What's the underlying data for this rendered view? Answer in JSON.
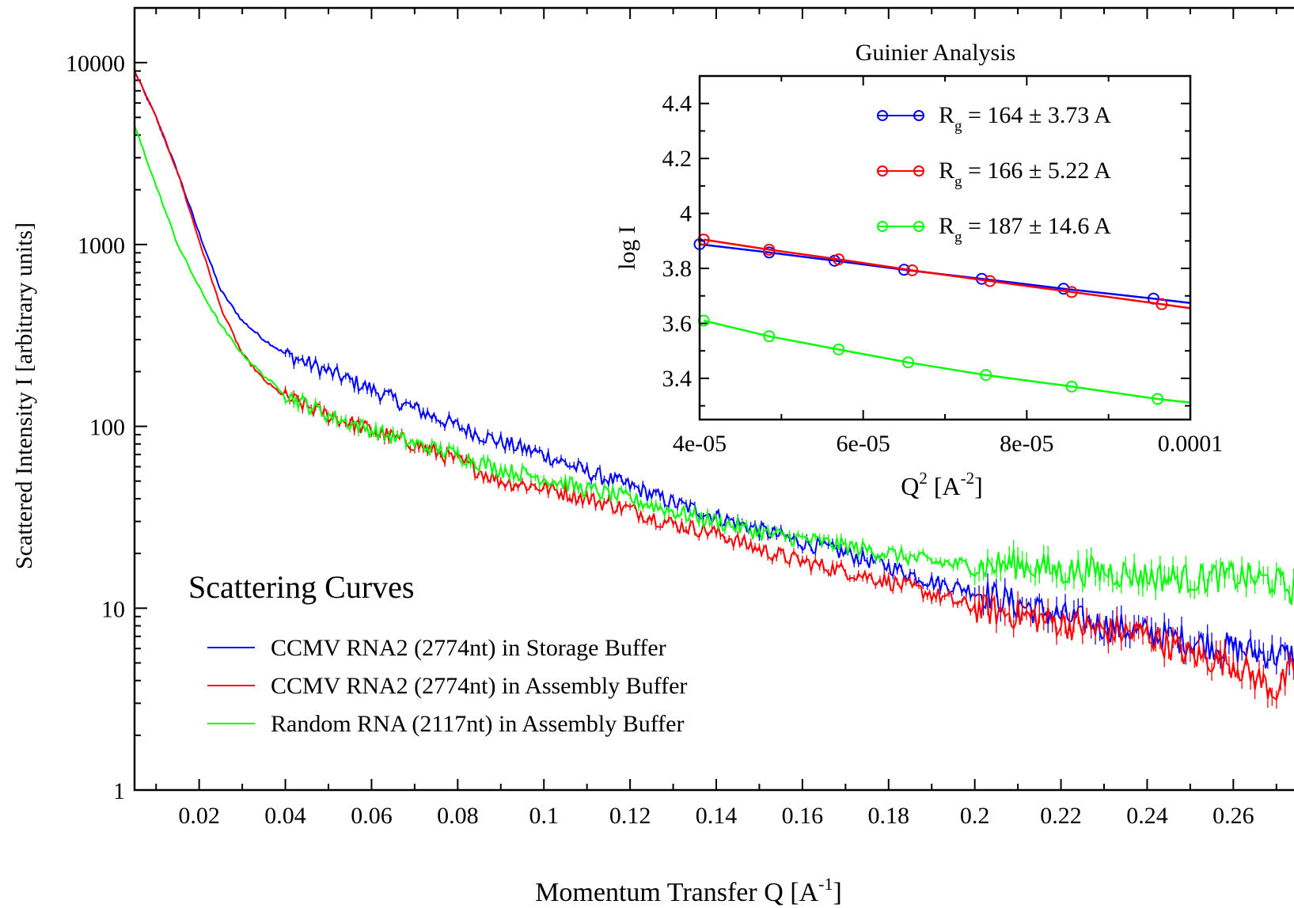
{
  "chart_data": [
    {
      "type": "line",
      "title": "Scattering Curves",
      "xlabel": "Momentum Transfer Q [A",
      "xlabel_sup": "-1",
      "xlabel_end": "]",
      "ylabel": "Scattered Intensity I [arbitrary units]",
      "xlim": [
        0.005,
        0.275
      ],
      "ylim": [
        1,
        20000
      ],
      "yscale": "log",
      "x_ticks": [
        "0.02",
        "0.04",
        "0.06",
        "0.08",
        "0.1",
        "0.12",
        "0.14",
        "0.16",
        "0.18",
        "0.2",
        "0.22",
        "0.24",
        "0.26"
      ],
      "y_ticks": [
        "1",
        "10",
        "100",
        "1000",
        "10000"
      ],
      "legend_position": "bottom-left",
      "series": [
        {
          "name": "CCMV RNA2 (2774nt) in Storage Buffer",
          "color": "#0000ff",
          "x": [
            0.005,
            0.01,
            0.015,
            0.02,
            0.025,
            0.03,
            0.035,
            0.04,
            0.05,
            0.06,
            0.07,
            0.08,
            0.09,
            0.1,
            0.11,
            0.12,
            0.13,
            0.14,
            0.15,
            0.16,
            0.17,
            0.18,
            0.19,
            0.2,
            0.21,
            0.22,
            0.23,
            0.24,
            0.25,
            0.26,
            0.27,
            0.275
          ],
          "y": [
            9000,
            5000,
            2500,
            1150,
            560,
            380,
            300,
            250,
            200,
            160,
            125,
            100,
            82,
            70,
            56,
            47,
            38,
            32,
            27,
            23,
            20,
            17,
            14,
            12.5,
            10.5,
            9,
            8,
            7.3,
            6.6,
            6,
            5.5,
            5.5
          ]
        },
        {
          "name": "CCMV RNA2 (2774nt) in Assembly Buffer",
          "color": "#ff0000",
          "x": [
            0.005,
            0.01,
            0.015,
            0.02,
            0.025,
            0.03,
            0.035,
            0.04,
            0.05,
            0.06,
            0.07,
            0.08,
            0.09,
            0.1,
            0.11,
            0.12,
            0.13,
            0.14,
            0.15,
            0.16,
            0.17,
            0.18,
            0.19,
            0.2,
            0.21,
            0.22,
            0.23,
            0.24,
            0.25,
            0.26,
            0.27,
            0.275
          ],
          "y": [
            9000,
            5000,
            2500,
            1050,
            450,
            250,
            180,
            145,
            115,
            95,
            80,
            65,
            50,
            46,
            40,
            35,
            29,
            26,
            21,
            18,
            16,
            14,
            12,
            10,
            9.2,
            8.3,
            7.5,
            7.2,
            5.5,
            5.0,
            3.5,
            5.0
          ]
        },
        {
          "name": "Random RNA (2117nt) in Assembly Buffer",
          "color": "#00ff00",
          "x": [
            0.005,
            0.01,
            0.015,
            0.02,
            0.025,
            0.03,
            0.035,
            0.04,
            0.05,
            0.06,
            0.07,
            0.08,
            0.09,
            0.1,
            0.11,
            0.12,
            0.13,
            0.14,
            0.15,
            0.16,
            0.17,
            0.18,
            0.19,
            0.2,
            0.21,
            0.22,
            0.23,
            0.24,
            0.25,
            0.26,
            0.27,
            0.275
          ],
          "y": [
            4500,
            2100,
            1000,
            580,
            360,
            250,
            190,
            150,
            115,
            95,
            80,
            70,
            58,
            52,
            45,
            40,
            34,
            30,
            26,
            24,
            22,
            20,
            18,
            17,
            17.5,
            16,
            16,
            15,
            14.5,
            15,
            14,
            12
          ]
        }
      ]
    },
    {
      "type": "line",
      "title": "Guinier Analysis",
      "xlabel": "Q",
      "xlabel_sup": "2",
      "xlabel_end": " [A",
      "xlabel_sup2": "-2",
      "xlabel_end2": "]",
      "ylabel": "log I",
      "xlim": [
        4e-05,
        0.0001
      ],
      "ylim": [
        3.25,
        4.5
      ],
      "x_ticks": [
        "4e-05",
        "6e-05",
        "8e-05",
        "0.0001"
      ],
      "y_ticks": [
        "3.4",
        "3.6",
        "3.8",
        "4",
        "4.2",
        "4.4"
      ],
      "legend_position": "top-right",
      "series": [
        {
          "label_main": "R",
          "label_sub": "g",
          "label_rest": " = 164 ± 3.73 A",
          "color": "#0000ff",
          "x": [
            4e-05,
            4.85e-05,
            5.65e-05,
            6.5e-05,
            7.45e-05,
            8.45e-05,
            9.55e-05,
            0.0001
          ],
          "y": [
            3.888,
            3.858,
            3.828,
            3.795,
            3.762,
            3.726,
            3.69,
            3.674
          ]
        },
        {
          "label_main": "R",
          "label_sub": "g",
          "label_rest": " = 166 ± 5.22 A",
          "color": "#ff0000",
          "x": [
            4.05e-05,
            4.85e-05,
            5.7e-05,
            6.6e-05,
            7.55e-05,
            8.55e-05,
            9.65e-05,
            0.0001
          ],
          "y": [
            3.905,
            3.868,
            3.833,
            3.793,
            3.754,
            3.714,
            3.67,
            3.655
          ]
        },
        {
          "label_main": "R",
          "label_sub": "g",
          "label_rest": " = 187 ± 14.6 A",
          "color": "#00ff00",
          "x": [
            4.05e-05,
            4.85e-05,
            5.7e-05,
            6.55e-05,
            7.5e-05,
            8.55e-05,
            9.6e-05,
            0.0001
          ],
          "y": [
            3.61,
            3.553,
            3.505,
            3.458,
            3.412,
            3.37,
            3.325,
            3.312
          ]
        }
      ]
    }
  ]
}
